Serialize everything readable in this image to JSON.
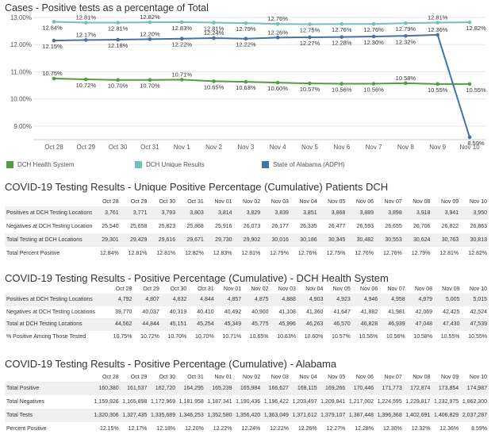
{
  "chart_data": {
    "type": "line",
    "title": "Cases - Positive tests as a percentage of Total",
    "categories": [
      "Oct 28",
      "Oct 29",
      "Oct 30",
      "Oct 31",
      "Nov 1",
      "Nov 2",
      "Nov 3",
      "Nov 4",
      "Nov 5",
      "Nov 6",
      "Nov 7",
      "Nov 8",
      "Nov 9",
      "Nov 10"
    ],
    "ylim": [
      8.5,
      13.0
    ],
    "yticks": [
      9.0,
      10.0,
      11.0,
      12.0,
      13.0
    ],
    "ytick_labels": [
      "9.00%",
      "10.00%",
      "11.00%",
      "12.00%",
      "13.00%"
    ],
    "grid": true,
    "legend_position": "bottom",
    "series": [
      {
        "name": "DCH Health System",
        "color": "#4e9f3d",
        "values": [
          10.75,
          10.72,
          10.7,
          10.7,
          10.71,
          10.65,
          10.63,
          10.6,
          10.57,
          10.56,
          10.56,
          10.58,
          10.55,
          10.55
        ],
        "labels": [
          "10.75%",
          "10.72%",
          "10.70%",
          "10.70%",
          "10.71%",
          "10.65%",
          "10.63%",
          "10.60%",
          "10.57%",
          "10.56%",
          "10.56%",
          "10.58%",
          "10.55%",
          "10.55%"
        ],
        "label_pos": [
          "above",
          "below",
          "below",
          "below",
          "above",
          "below",
          "below",
          "below",
          "below",
          "below",
          "below",
          "above",
          "below",
          "below"
        ]
      },
      {
        "name": "DCH Unique Results",
        "color": "#71c0b9",
        "values": [
          12.84,
          12.81,
          12.81,
          12.82,
          12.83,
          12.81,
          12.79,
          12.76,
          12.75,
          12.76,
          12.76,
          12.79,
          12.81,
          12.82
        ],
        "labels": [
          "12.84%",
          "12.81%",
          "12.81%",
          "12.82%",
          "12.83%",
          "12.81%",
          "12.79%",
          "12.76%",
          "12.75%",
          "12.76%",
          "12.76%",
          "12.79%",
          "12.81%",
          "12.82%"
        ],
        "label_pos": [
          "below",
          "above",
          "below",
          "above",
          "below",
          "below",
          "below",
          "above",
          "below",
          "below",
          "below",
          "below",
          "above",
          "below"
        ]
      },
      {
        "name": "State of Alabama (ADPH)",
        "color": "#4573a8",
        "values": [
          12.15,
          12.17,
          12.18,
          12.2,
          12.22,
          12.24,
          12.22,
          12.26,
          12.27,
          12.28,
          12.3,
          12.32,
          12.36,
          8.59
        ],
        "labels": [
          "12.15%",
          "12.17%",
          "12.18%",
          "12.20%",
          "12.22%",
          "12.24%",
          "12.22%",
          "12.26%",
          "12.27%",
          "12.28%",
          "12.30%",
          "12.32%",
          "12.36%",
          "8.59%"
        ],
        "label_pos": [
          "below",
          "above",
          "below",
          "above",
          "below",
          "above",
          "below",
          "above",
          "below",
          "below",
          "below",
          "below",
          "above",
          "below"
        ]
      }
    ]
  },
  "tables": [
    {
      "title": "COVID-19 Testing Results - Unique Positive Percentage (Cumulative) Patients DCH",
      "columns": [
        "Oct 28",
        "Oct 29",
        "Oct 30",
        "Oct 31",
        "Nov 01",
        "Nov 02",
        "Nov 03",
        "Nov 04",
        "Nov 05",
        "Nov 06",
        "Nov 07",
        "Nov 08",
        "Nov 09",
        "Nov 10"
      ],
      "rows": [
        {
          "label": "Positives at DCH Testing Locations",
          "values": [
            "3,761",
            "3,771",
            "3,793",
            "3,803",
            "3,814",
            "3,829",
            "3,839",
            "3,851",
            "3,868",
            "3,889",
            "3,898",
            "3,918",
            "3,941",
            "3,950"
          ]
        },
        {
          "label": "Negatives at DCH Testing Locations",
          "values": [
            "25,540",
            "25,658",
            "25,823",
            "25,868",
            "25,916",
            "26,073",
            "26,177",
            "26,335",
            "26,477",
            "26,593",
            "26,655",
            "26,706",
            "26,822",
            "26,863"
          ]
        },
        {
          "label": "Total Testing at DCH Locations",
          "values": [
            "29,301",
            "29,429",
            "29,616",
            "29,671",
            "29,730",
            "29,902",
            "30,016",
            "30,186",
            "30,345",
            "30,482",
            "30,553",
            "30,624",
            "30,763",
            "30,813"
          ]
        },
        {
          "label": "Total Percent Positive",
          "values": [
            "12.84%",
            "12.81%",
            "12.81%",
            "12.82%",
            "12.83%",
            "12.81%",
            "12.79%",
            "12.76%",
            "12.75%",
            "12.76%",
            "12.76%",
            "12.79%",
            "12.81%",
            "12.82%"
          ]
        }
      ]
    },
    {
      "title": "COVID-19 Testing Results - Positive Percentage (Cumulative) - DCH Health System",
      "columns": [
        "Oct 28",
        "Oct 29",
        "Oct 30",
        "Oct 31",
        "Nov 01",
        "Nov 02",
        "Nov 03",
        "Nov 04",
        "Nov 05",
        "Nov 06",
        "Nov 07",
        "Nov 08",
        "Nov 09",
        "Nov 10"
      ],
      "rows": [
        {
          "label": "Positives at DCH Testing Locations",
          "values": [
            "4,792",
            "4,807",
            "4,832",
            "4,844",
            "4,857",
            "4,875",
            "4,888",
            "4,903",
            "4,923",
            "4,946",
            "4,958",
            "4,979",
            "5,005",
            "5,015"
          ]
        },
        {
          "label": "Negatives at DCH Testing Locations",
          "values": [
            "39,770",
            "40,037",
            "40,319",
            "40,410",
            "40,492",
            "40,900",
            "41,108",
            "41,360",
            "41,647",
            "41,882",
            "41,981",
            "42,069",
            "42,425",
            "42,524"
          ]
        },
        {
          "label": "Total at DCH Testing Locations",
          "values": [
            "44,562",
            "44,844",
            "45,151",
            "45,254",
            "45,349",
            "45,775",
            "45,996",
            "46,263",
            "46,570",
            "46,828",
            "46,939",
            "47,048",
            "47,430",
            "47,539"
          ]
        },
        {
          "label": "% Positive Among Those Tested",
          "values": [
            "10.75%",
            "10.72%",
            "10.70%",
            "10.70%",
            "10.71%",
            "10.65%",
            "10.63%",
            "10.60%",
            "10.57%",
            "10.56%",
            "10.56%",
            "10.58%",
            "10.55%",
            "10.55%"
          ]
        }
      ]
    },
    {
      "title": "COVID-19 Testing Results - Positive Percentage (Cumulative) - Alabama",
      "columns": [
        "Oct 28",
        "Oct 29",
        "Oct 30",
        "Oct 31",
        "Nov 01",
        "Nov 02",
        "Nov 03",
        "Nov 04",
        "Nov 05",
        "Nov 06",
        "Nov 07",
        "Nov 08",
        "Nov 09",
        "Nov 10"
      ],
      "rows": [
        {
          "label": "Total Positive",
          "values": [
            "160,380",
            "161,537",
            "162,720",
            "164,295",
            "165,239",
            "165,984",
            "166,627",
            "168,115",
            "169,266",
            "170,446",
            "171,773",
            "172,874",
            "173,854",
            "174,987"
          ]
        },
        {
          "label": "Total Negatives",
          "values": [
            "1,159,926",
            "1,165,898",
            "1,172,969",
            "1,181,958",
            "1,187,341",
            "1,190,436",
            "1,196,422",
            "1,203,497",
            "1,209,841",
            "1,217,002",
            "1,224,595",
            "1,229,817",
            "1,232,975",
            "1,862,300"
          ]
        },
        {
          "label": "Total Tests",
          "values": [
            "1,320,306",
            "1,327,435",
            "1,335,689",
            "1,346,253",
            "1,352,580",
            "1,356,420",
            "1,363,049",
            "1,371,612",
            "1,379,107",
            "1,387,448",
            "1,396,368",
            "1,402,691",
            "1,406,829",
            "2,037,287"
          ]
        },
        {
          "label": "Percent Positive",
          "values": [
            "12.15%",
            "12.17%",
            "12.18%",
            "12.20%",
            "12.22%",
            "12.24%",
            "12.22%",
            "12.26%",
            "12.27%",
            "12.28%",
            "12.30%",
            "12.32%",
            "12.36%",
            "8.59%"
          ]
        }
      ]
    }
  ]
}
